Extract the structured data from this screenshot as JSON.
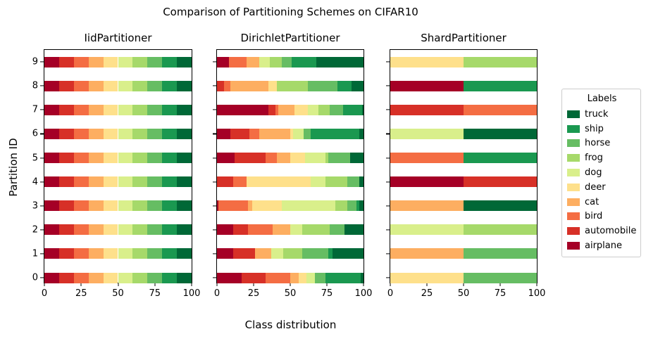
{
  "chart_data": {
    "type": "bar",
    "orientation": "horizontal",
    "stacked": true,
    "title": "Comparison of Partitioning Schemes on CIFAR10",
    "xlabel": "Class distribution",
    "ylabel": "Partition ID",
    "xlim": [
      0,
      100
    ],
    "xticks": [
      0,
      25,
      50,
      75,
      100
    ],
    "yticks": [
      9,
      8,
      7,
      6,
      5,
      4,
      3,
      2,
      1,
      0
    ],
    "grid": false,
    "classes": [
      "airplane",
      "automobile",
      "bird",
      "cat",
      "deer",
      "dog",
      "frog",
      "horse",
      "ship",
      "truck"
    ],
    "colors": {
      "airplane": "#a50026",
      "automobile": "#d73027",
      "bird": "#f46d43",
      "cat": "#fdae61",
      "deer": "#fee08b",
      "dog": "#d9ef8b",
      "frog": "#a6d96a",
      "horse": "#66bd63",
      "ship": "#1a9850",
      "truck": "#006837"
    },
    "legend": {
      "title": "Labels",
      "position": "right",
      "items": [
        "truck",
        "ship",
        "horse",
        "frog",
        "dog",
        "deer",
        "cat",
        "bird",
        "automobile",
        "airplane"
      ]
    },
    "subplots": [
      {
        "title": "IidPartitioner",
        "values_by_partition": [
          [
            10,
            10,
            10,
            10,
            10,
            10,
            10,
            10,
            10,
            10
          ],
          [
            10,
            10,
            10,
            10,
            10,
            10,
            10,
            10,
            10,
            10
          ],
          [
            10,
            10,
            10,
            10,
            10,
            10,
            10,
            10,
            10,
            10
          ],
          [
            10,
            10,
            10,
            10,
            10,
            10,
            10,
            10,
            10,
            10
          ],
          [
            10,
            10,
            10,
            10,
            10,
            10,
            10,
            10,
            10,
            10
          ],
          [
            10,
            10,
            10,
            10,
            10,
            10,
            10,
            10,
            10,
            10
          ],
          [
            10,
            10,
            10,
            10,
            10,
            10,
            10,
            10,
            10,
            10
          ],
          [
            10,
            10,
            10,
            10,
            10,
            10,
            10,
            10,
            10,
            10
          ],
          [
            10,
            10,
            10,
            10,
            10,
            10,
            10,
            10,
            10,
            10
          ],
          [
            10,
            10,
            10,
            10,
            10,
            10,
            10,
            10,
            10,
            10
          ]
        ]
      },
      {
        "title": "DirichletPartitioner",
        "values_by_partition": [
          [
            17,
            16,
            17,
            6,
            5,
            6,
            0,
            7,
            24,
            2
          ],
          [
            11,
            15,
            0,
            11,
            0,
            8,
            13,
            18,
            3,
            21
          ],
          [
            11,
            10,
            17,
            12,
            0,
            8,
            19,
            10,
            0,
            13
          ],
          [
            1,
            0,
            20,
            3,
            20,
            37,
            8,
            6,
            2,
            3
          ],
          [
            0,
            11,
            9,
            0,
            44,
            10,
            15,
            8,
            0,
            3
          ],
          [
            12,
            21,
            8,
            9,
            10,
            14,
            2,
            15,
            0,
            9
          ],
          [
            9,
            13,
            7,
            21,
            2,
            7,
            0,
            5,
            33,
            3
          ],
          [
            35,
            5,
            2,
            11,
            9,
            7,
            8,
            9,
            13,
            1
          ],
          [
            0,
            5,
            4,
            26,
            6,
            0,
            21,
            20,
            10,
            8
          ],
          [
            8,
            0,
            12,
            9,
            0,
            7,
            8,
            7,
            17,
            32
          ]
        ]
      },
      {
        "title": "ShardPartitioner",
        "values_by_partition": [
          [
            0,
            0,
            0,
            0,
            50,
            0,
            0,
            50,
            0,
            0
          ],
          [
            0,
            0,
            0,
            50,
            0,
            0,
            0,
            50,
            0,
            0
          ],
          [
            0,
            0,
            0,
            0,
            0,
            50,
            50,
            0,
            0,
            0
          ],
          [
            0,
            0,
            0,
            50,
            0,
            0,
            0,
            0,
            0,
            50
          ],
          [
            50,
            50,
            0,
            0,
            0,
            0,
            0,
            0,
            0,
            0
          ],
          [
            0,
            0,
            50,
            0,
            0,
            0,
            0,
            0,
            50,
            0
          ],
          [
            0,
            0,
            0,
            0,
            0,
            50,
            0,
            0,
            0,
            50
          ],
          [
            0,
            50,
            50,
            0,
            0,
            0,
            0,
            0,
            0,
            0
          ],
          [
            50,
            0,
            0,
            0,
            0,
            0,
            0,
            0,
            50,
            0
          ],
          [
            0,
            0,
            0,
            0,
            50,
            0,
            50,
            0,
            0,
            0
          ]
        ]
      }
    ]
  }
}
